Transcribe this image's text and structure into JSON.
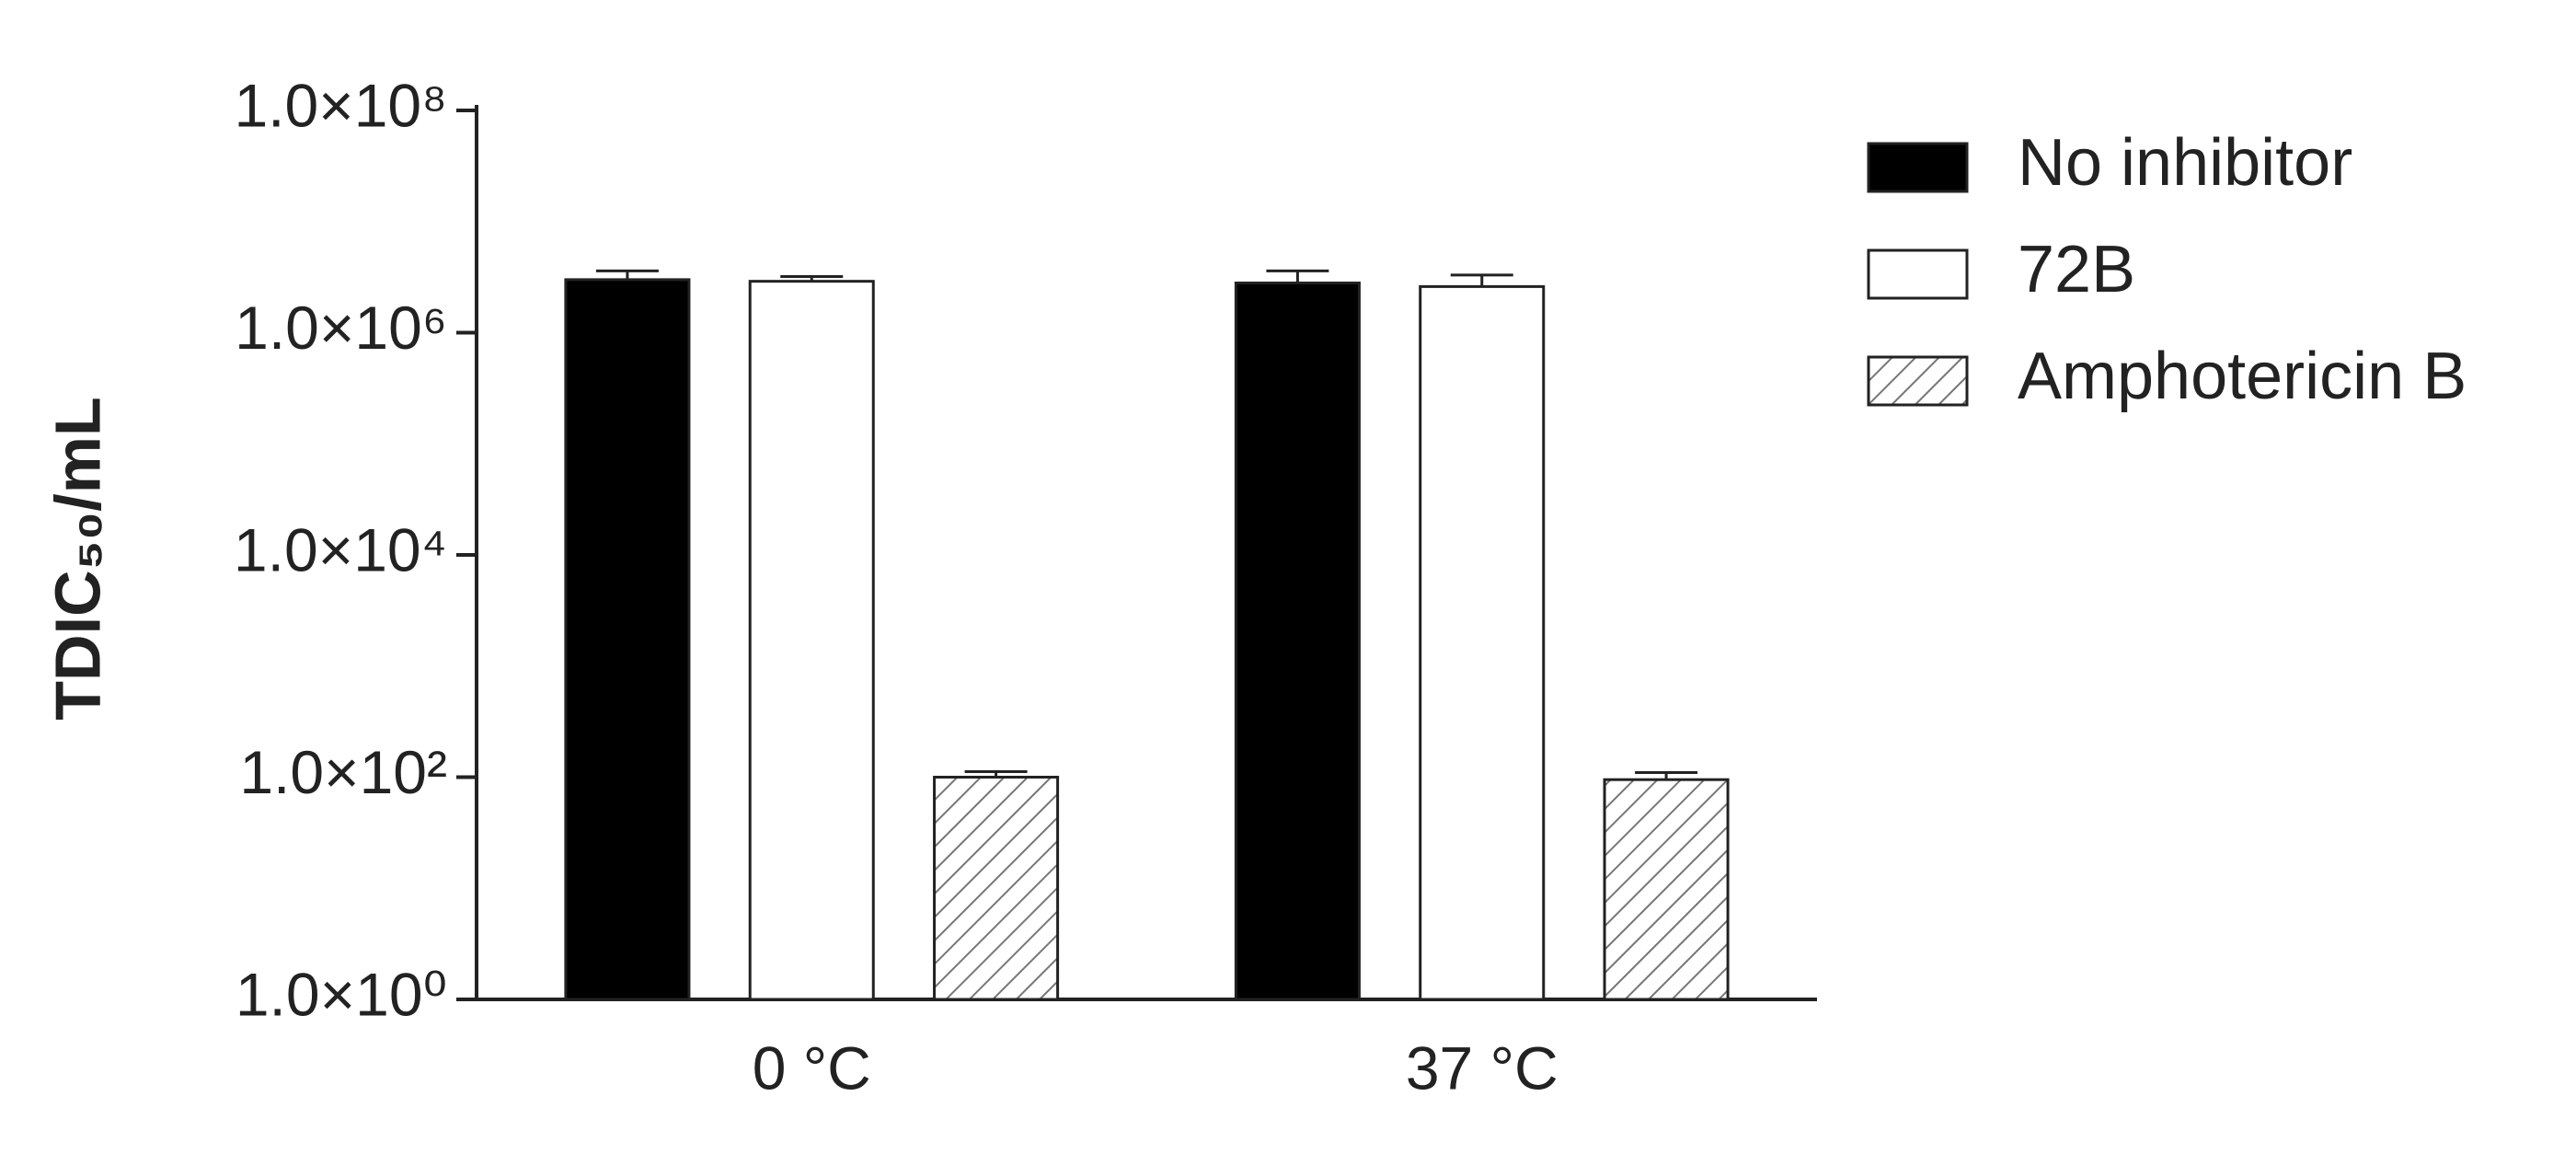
{
  "chart_data": {
    "type": "bar",
    "log_scale": true,
    "y_label": "TDIC₅₀/mL",
    "categories": [
      "0 °C",
      "37 °C"
    ],
    "series": [
      {
        "name": "No inhibitor",
        "color": "#000000",
        "hatch": false,
        "values": [
          3000000,
          2800000
        ],
        "errors": [
          600000,
          800000
        ]
      },
      {
        "name": "72B",
        "color": "#ffffff",
        "hatch": false,
        "values": [
          2900000,
          2600000
        ],
        "errors": [
          300000,
          700000
        ]
      },
      {
        "name": "Amphotericin B",
        "color": "#ffffff",
        "hatch": true,
        "values": [
          100,
          95
        ],
        "errors": [
          12,
          15
        ]
      }
    ],
    "ylim": [
      1,
      100000000
    ],
    "yticks": [
      {
        "value": 1,
        "label": "1.0×10⁰"
      },
      {
        "value": 100,
        "label": "1.0×10²"
      },
      {
        "value": 10000,
        "label": "1.0×10⁴"
      },
      {
        "value": 1000000,
        "label": "1.0×10⁶"
      },
      {
        "value": 100000000,
        "label": "1.0×10⁸"
      }
    ],
    "legend": "right"
  }
}
